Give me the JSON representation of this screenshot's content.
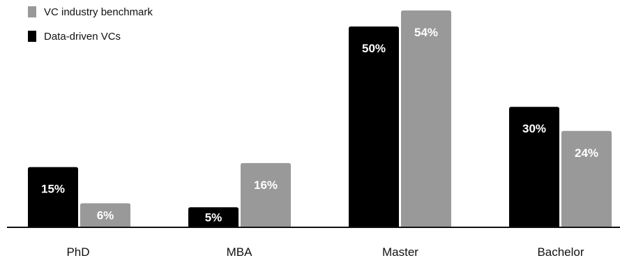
{
  "chart_data": {
    "type": "bar",
    "categories": [
      "PhD",
      "MBA",
      "Master",
      "Bachelor"
    ],
    "series": [
      {
        "name": "Data-driven VCs",
        "values": [
          15,
          5,
          50,
          30
        ],
        "labels": [
          "15%",
          "5%",
          "50%",
          "30%"
        ],
        "color": "#000000"
      },
      {
        "name": "VC industry benchmark",
        "values": [
          6,
          16,
          54,
          24
        ],
        "labels": [
          "6%",
          "16%",
          "54%",
          "24%"
        ],
        "color": "#999999"
      }
    ],
    "legend": {
      "position": "top-left",
      "order": [
        "VC industry benchmark",
        "Data-driven VCs"
      ]
    },
    "ylim": [
      0,
      54
    ],
    "grid": false,
    "axis_color": "#111111"
  }
}
